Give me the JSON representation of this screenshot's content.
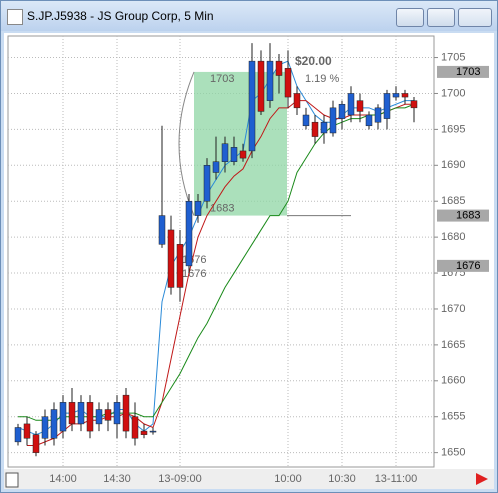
{
  "window": {
    "title": "S.JP.J5938 - JS Group Corp, 5 Min"
  },
  "chart_data": {
    "type": "candlestick",
    "categories": [
      null,
      null,
      null,
      null,
      null,
      "14:00",
      null,
      null,
      null,
      null,
      null,
      "14:30",
      null,
      null,
      null,
      null,
      null,
      null,
      "13-09:00",
      null,
      null,
      null,
      null,
      null,
      null,
      null,
      null,
      null,
      null,
      null,
      "10:00",
      null,
      null,
      null,
      null,
      null,
      "10:30",
      null,
      null,
      null,
      null,
      null,
      "13-11:00",
      null,
      null
    ],
    "open": [
      1651.5,
      1654,
      1652.5,
      1652,
      1652,
      1653,
      1657,
      1654,
      1657,
      1654,
      1656,
      1654,
      1658,
      1655,
      1653,
      1653,
      1679,
      1681,
      1679,
      1676,
      1683,
      1685,
      1689,
      1690.5,
      1690.5,
      1692,
      1692,
      1704.5,
      1699,
      1704.5,
      1703.5,
      1700,
      1695.5,
      1696,
      1694.5,
      1694.5,
      1696.5,
      1697,
      1699,
      1695.5,
      1696,
      1696.5,
      1699.5,
      1700,
      1699
    ],
    "high": [
      1654,
      1655,
      1653,
      1656,
      1657,
      1658,
      1659,
      1658,
      1658,
      1657,
      1657,
      1658,
      1659,
      1657,
      1654,
      1653.5,
      1695.5,
      1683,
      1681,
      1686,
      1686,
      1691,
      1694,
      1694,
      1694,
      1693,
      1707,
      1706,
      1707,
      1705.5,
      1706,
      1701,
      1698,
      1697,
      1697,
      1699,
      1699,
      1701,
      1700,
      1697.5,
      1698.5,
      1700.5,
      1701,
      1700.5,
      1699.5
    ],
    "low": [
      1651,
      1651,
      1649.5,
      1651,
      1651,
      1652,
      1653,
      1653,
      1652,
      1653,
      1653,
      1652,
      1652,
      1651,
      1652,
      1652.5,
      1678.5,
      1672,
      1671,
      1675,
      1682,
      1684,
      1688,
      1689,
      1690,
      1690.5,
      1691,
      1697,
      1698,
      1700,
      1698,
      1697,
      1695,
      1693,
      1693,
      1694,
      1695,
      1696,
      1696,
      1695,
      1695,
      1695,
      1699,
      1698.5,
      1696
    ],
    "close": [
      1653.5,
      1652,
      1650,
      1655,
      1656,
      1657,
      1654,
      1657,
      1653,
      1656,
      1654.5,
      1657,
      1653,
      1652,
      1652.5,
      1653,
      1683,
      1673,
      1673,
      1685,
      1685,
      1690,
      1690.5,
      1693,
      1692.5,
      1691,
      1704.5,
      1697.5,
      1704.5,
      1702.5,
      1699.5,
      1698,
      1697,
      1694,
      1696,
      1698,
      1698.5,
      1700,
      1697.5,
      1697,
      1698,
      1700,
      1700,
      1699.5,
      1698
    ],
    "up_color": "#1f5fd0",
    "down_color": "#d01010",
    "series": [
      {
        "color": "#2a8ad8",
        "values": [
          1653.5,
          1653,
          1652.5,
          1653,
          1654,
          1655.5,
          1655.5,
          1656,
          1655,
          1655,
          1655,
          1656,
          1656,
          1654,
          1653,
          1654,
          1671,
          1676,
          1678,
          1680,
          1683,
          1686,
          1688,
          1690,
          1691,
          1692,
          1699,
          1700,
          1702,
          1704,
          1704.5,
          1701,
          1699,
          1697,
          1696,
          1696,
          1697,
          1698,
          1698,
          1698,
          1697.5,
          1698,
          1698.5,
          1699,
          1699
        ]
      },
      {
        "color": "#c01818",
        "values": [
          null,
          1651,
          1651,
          1651.5,
          1652,
          1653,
          1654,
          1654,
          1654.5,
          1654.5,
          1655,
          1655,
          1655.5,
          1655,
          1654,
          1653.5,
          1657,
          1663,
          1669,
          1675,
          1680,
          1683,
          1685,
          1687,
          1688.5,
          1689.5,
          1692,
          1694,
          1696.5,
          1698,
          1698,
          1699,
          1699,
          1698,
          1697,
          1696.5,
          1696.5,
          1697,
          1697,
          1697,
          1697,
          1697.5,
          1698,
          1698.5,
          1698.5
        ]
      },
      {
        "color": "#1a8a1a",
        "values": [
          1655,
          1655,
          1654.5,
          1654.5,
          1654.5,
          1655,
          1655,
          1655,
          1655,
          1655,
          1655.5,
          1655.5,
          1655.5,
          1655.5,
          1655,
          1655,
          1657,
          1659,
          1661,
          1663.5,
          1666,
          1668,
          1670.5,
          1673,
          1675,
          1677,
          1679,
          1681,
          1683,
          1683,
          1685,
          1689,
          1691,
          1693,
          1694.5,
          1695.5,
          1696,
          1696.5,
          1696.5,
          1697,
          1697,
          1697.5,
          1698,
          1698,
          1698.5
        ]
      }
    ],
    "ylim": [
      1648,
      1708
    ],
    "yticks": [
      1650,
      1655,
      1660,
      1665,
      1670,
      1675,
      1680,
      1685,
      1690,
      1695,
      1700,
      1705
    ],
    "grid": true,
    "price_tags": [
      1703,
      1683,
      1676
    ],
    "range_box": {
      "top": 1703,
      "bottom": 1683,
      "change": "$20.00",
      "change_pct": "1.19 %"
    },
    "low_labels": [
      1676,
      1676
    ]
  }
}
